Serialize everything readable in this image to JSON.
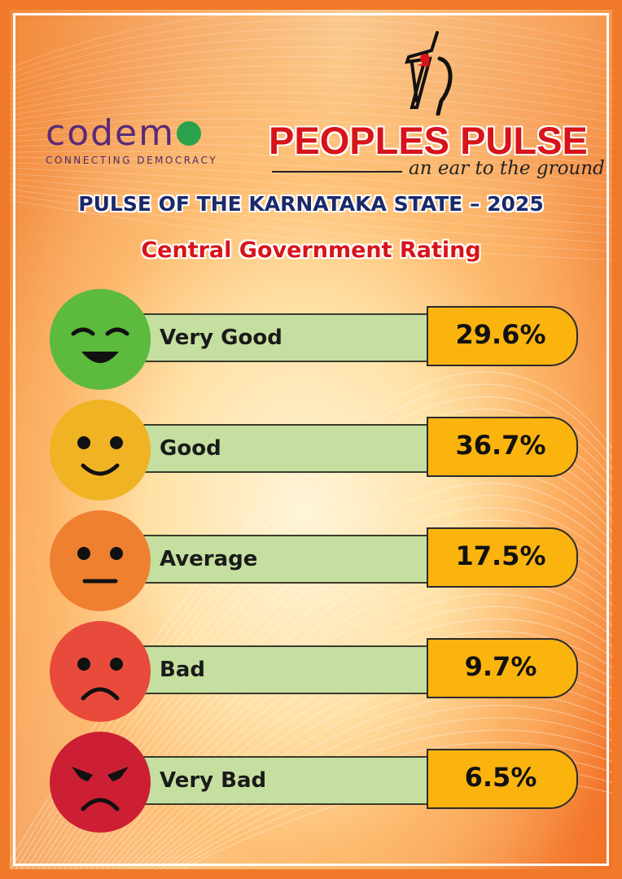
{
  "header": {
    "codemo_word": "codem",
    "codemo_tagline": "CONNECTING DEMOCRACY",
    "peoples_pulse": "PEOPLES PULSE",
    "peoples_pulse_tagline": "an ear to the ground",
    "title": "PULSE OF THE KARNATAKA STATE – 2025",
    "subtitle": "Central Government Rating"
  },
  "colors": {
    "very_good": "#5cba3c",
    "good": "#f0b323",
    "average": "#ee8030",
    "bad": "#e84a3c",
    "very_bad": "#cc1f34"
  },
  "chart_data": {
    "type": "bar",
    "title": "Central Government Rating",
    "categories": [
      "Very Good",
      "Good",
      "Average",
      "Bad",
      "Very Bad"
    ],
    "values": [
      29.6,
      36.7,
      17.5,
      9.7,
      6.5
    ],
    "value_labels": [
      "29.6%",
      "36.7%",
      "17.5%",
      "9.7%",
      "6.5%"
    ],
    "icons": [
      "grinning-face-icon",
      "smiling-face-icon",
      "neutral-face-icon",
      "frowning-face-icon",
      "angry-face-icon"
    ]
  }
}
